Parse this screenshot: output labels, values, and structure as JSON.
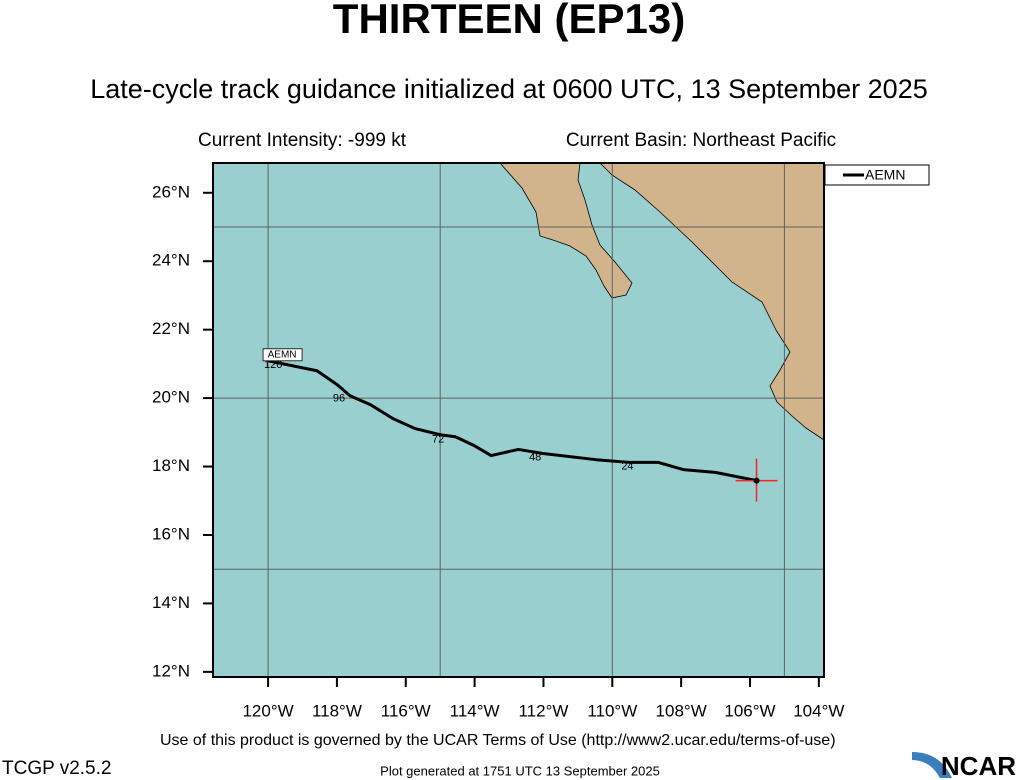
{
  "title": "THIRTEEN (EP13)",
  "subtitle": "Late-cycle track guidance initialized at 0600 UTC, 13 September 2025",
  "info_left": "Current Intensity: -999 kt",
  "info_right": "Current Basin: Northeast Pacific",
  "footer": "Use of this product is governed by the UCAR Terms of Use (http://www2.ucar.edu/terms-of-use)",
  "version": "TCGP v2.5.2",
  "generated": "Plot generated at 1751 UTC   13 September 2025",
  "logo": "NCAR",
  "chart_data": {
    "type": "track",
    "xlim": [
      -121.6,
      -103.85
    ],
    "ylim": [
      11.85,
      26.87
    ],
    "xticks": [
      {
        "value": -120,
        "label": "120°W"
      },
      {
        "value": -118,
        "label": "118°W"
      },
      {
        "value": -116,
        "label": "116°W"
      },
      {
        "value": -114,
        "label": "114°W"
      },
      {
        "value": -112,
        "label": "112°W"
      },
      {
        "value": -110,
        "label": "110°W"
      },
      {
        "value": -108,
        "label": "108°W"
      },
      {
        "value": -106,
        "label": "106°W"
      },
      {
        "value": -104,
        "label": "104°W"
      }
    ],
    "yticks": [
      {
        "value": 12,
        "label": "12°N"
      },
      {
        "value": 14,
        "label": "14°N"
      },
      {
        "value": 16,
        "label": "16°N"
      },
      {
        "value": 18,
        "label": "18°N"
      },
      {
        "value": 20,
        "label": "20°N"
      },
      {
        "value": 22,
        "label": "22°N"
      },
      {
        "value": 24,
        "label": "24°N"
      },
      {
        "value": 26,
        "label": "26°N"
      }
    ],
    "grid_x": [
      -120,
      -115,
      -110,
      -105
    ],
    "grid_y": [
      15,
      20,
      25
    ],
    "legend": "outside-right",
    "marker_color": "#ff2020",
    "series": [
      {
        "name": "AEMN",
        "color": "#000000",
        "x": [
          -105.81,
          -107.01,
          -107.94,
          -108.66,
          -109.48,
          -110.47,
          -112.01,
          -112.73,
          -113.52,
          -114.01,
          -114.56,
          -115.0,
          -115.73,
          -116.37,
          -117.03,
          -117.62,
          -117.99,
          -118.58,
          -120.0
        ],
        "y": [
          17.59,
          17.83,
          17.91,
          18.12,
          18.12,
          18.2,
          18.38,
          18.5,
          18.32,
          18.61,
          18.87,
          18.93,
          19.11,
          19.4,
          19.81,
          20.07,
          20.39,
          20.8,
          21.09
        ]
      }
    ],
    "hour_labels": [
      {
        "label": "120",
        "x": -119.85,
        "y": 20.97
      },
      {
        "label": "96",
        "x": -117.94,
        "y": 19.98
      },
      {
        "label": "72",
        "x": -115.06,
        "y": 18.79
      },
      {
        "label": "48",
        "x": -112.24,
        "y": 18.26
      },
      {
        "label": "24",
        "x": -109.56,
        "y": 18.0
      }
    ]
  }
}
